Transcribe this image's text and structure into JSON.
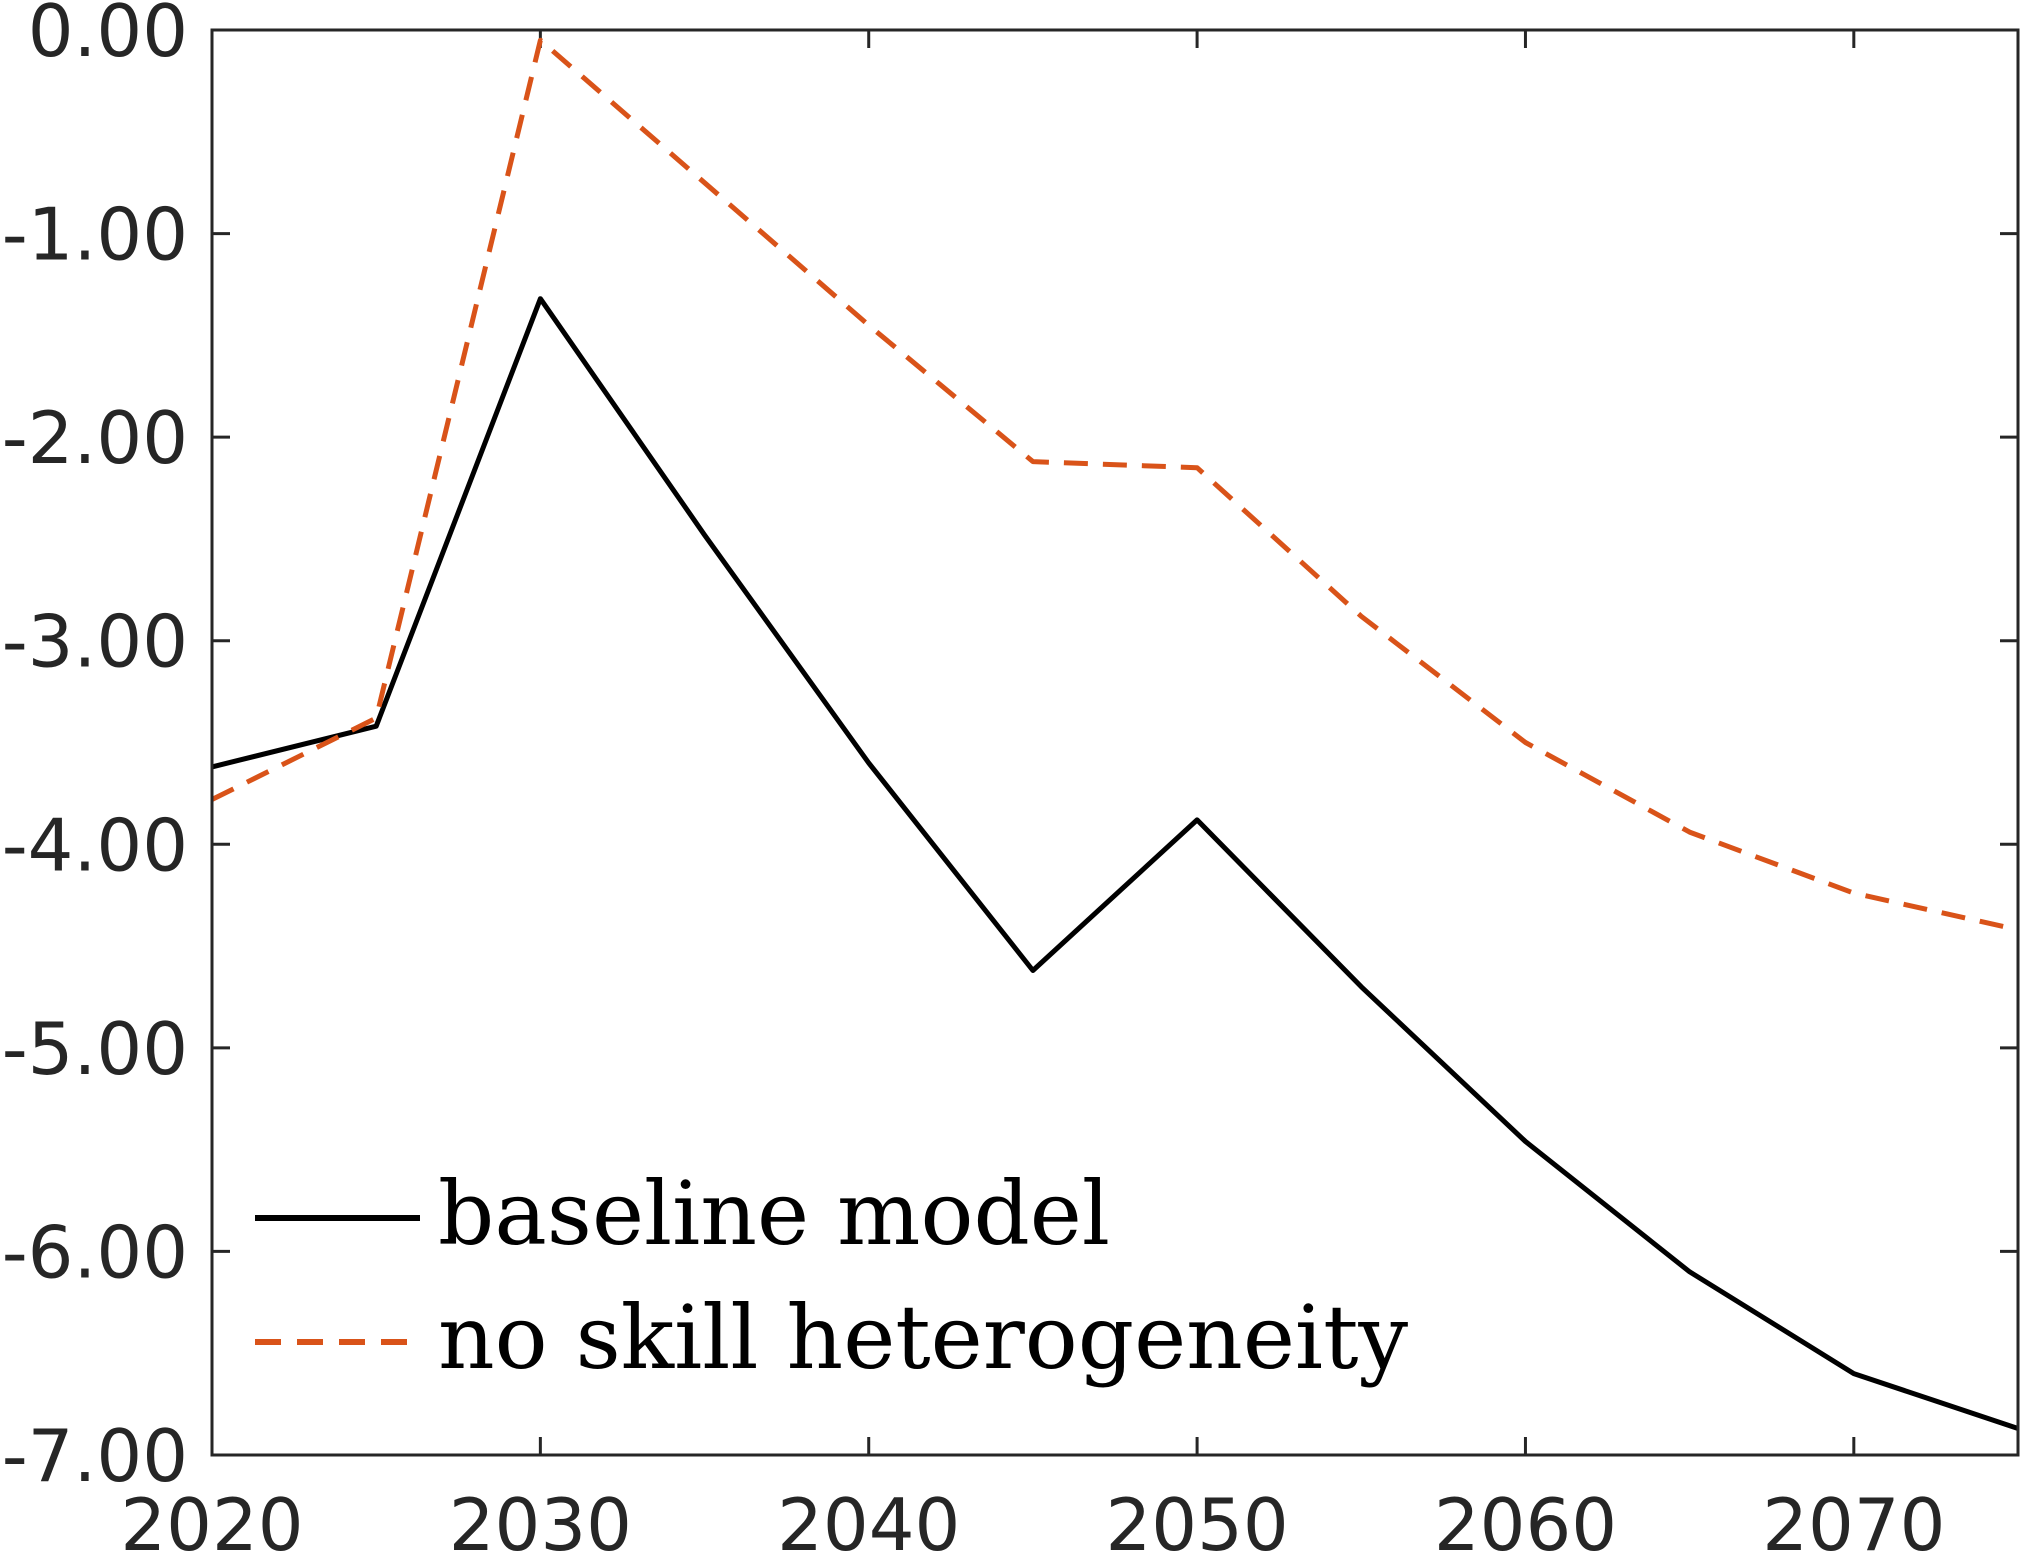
{
  "chart_data": {
    "type": "line",
    "title": "",
    "xlabel": "",
    "ylabel": "",
    "xlim": [
      2020,
      2075
    ],
    "ylim": [
      -7,
      0
    ],
    "grid": false,
    "legend_position": "bottom-left",
    "x_ticks": [
      2020,
      2030,
      2040,
      2050,
      2060,
      2070
    ],
    "x_tick_labels": [
      "2020",
      "2030",
      "2040",
      "2050",
      "2060",
      "2070"
    ],
    "y_ticks": [
      0,
      -1,
      -2,
      -3,
      -4,
      -5,
      -6,
      -7
    ],
    "y_tick_labels": [
      "0.00",
      "-1.00",
      "-2.00",
      "-3.00",
      "-4.00",
      "-5.00",
      "-6.00",
      "-7.00"
    ],
    "x": [
      2020,
      2025,
      2030,
      2035,
      2040,
      2045,
      2050,
      2055,
      2060,
      2065,
      2070,
      2075
    ],
    "series": [
      {
        "name": "baseline model",
        "color": "#000000",
        "dash": "solid",
        "values": [
          -3.62,
          -3.42,
          -1.32,
          -2.48,
          -3.6,
          -4.62,
          -3.88,
          -4.7,
          -5.46,
          -6.1,
          -6.6,
          -6.87
        ]
      },
      {
        "name": "no skill heterogeneity",
        "color": "#d95319",
        "dash": "dashed",
        "values": [
          -3.78,
          -3.38,
          -0.05,
          -0.75,
          -1.45,
          -2.12,
          -2.15,
          -2.88,
          -3.5,
          -3.94,
          -4.24,
          -4.42
        ]
      }
    ]
  }
}
